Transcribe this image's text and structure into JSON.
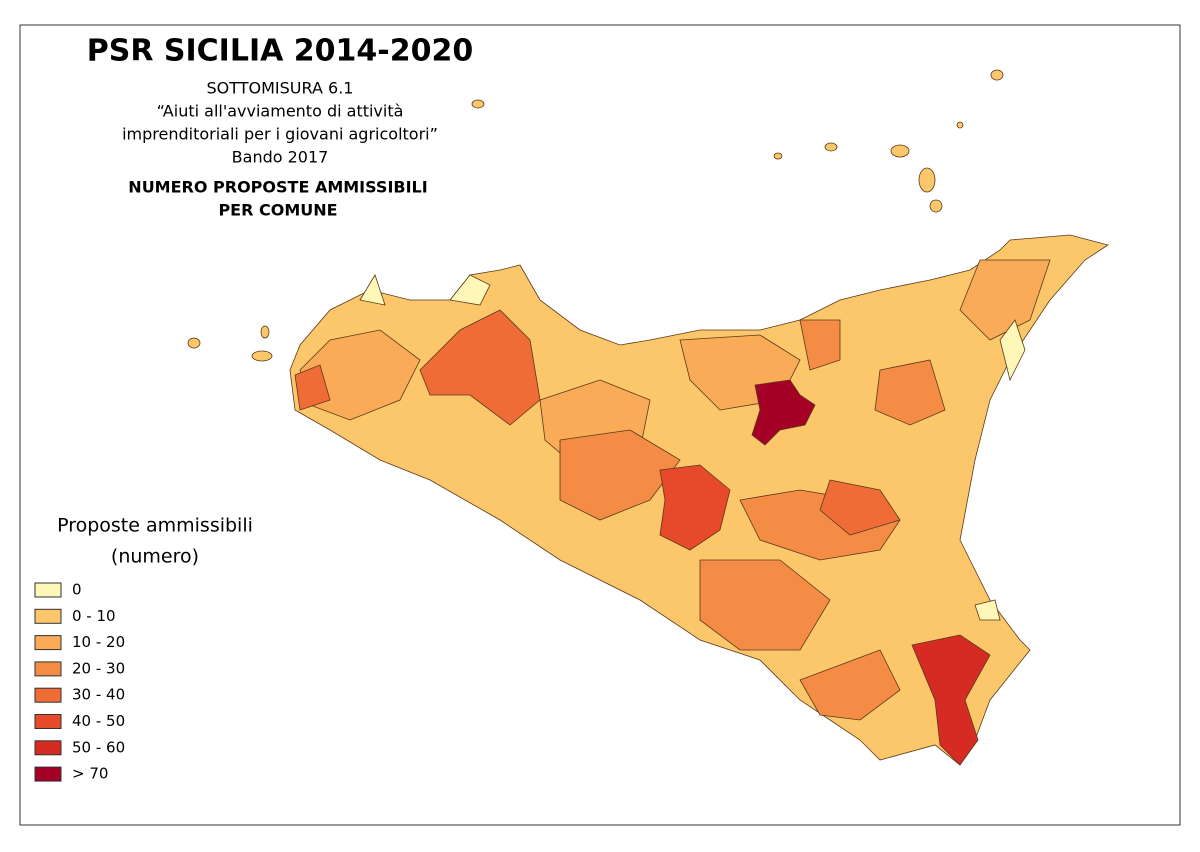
{
  "header": {
    "title": "PSR SICILIA 2014-2020",
    "lines": [
      "SOTTOMISURA 6.1",
      "“Aiuti all'avviamento di attività",
      "imprenditoriali per i giovani agricoltori”",
      "Bando 2017"
    ],
    "subtitle": [
      "NUMERO PROPOSTE AMMISSIBILI",
      "PER COMUNE"
    ]
  },
  "legend": {
    "title": [
      "Proposte ammissibili",
      "(numero)"
    ],
    "items": [
      {
        "label": "0",
        "color": "#fef7b8"
      },
      {
        "label": "0 - 10",
        "color": "#fcc66a"
      },
      {
        "label": "10 - 20",
        "color": "#f9ab58"
      },
      {
        "label": "20 - 30",
        "color": "#f58c46"
      },
      {
        "label": "30 - 40",
        "color": "#ef6c37"
      },
      {
        "label": "40 - 50",
        "color": "#e64a2b"
      },
      {
        "label": "50 - 60",
        "color": "#d62b22"
      },
      {
        "label": "> 70",
        "color": "#a50026"
      }
    ]
  }
}
